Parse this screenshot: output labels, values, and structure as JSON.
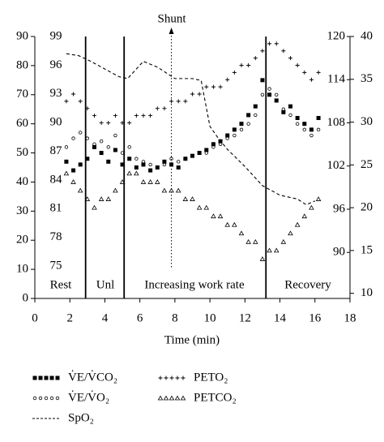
{
  "chart_data": {
    "type": "scatter",
    "xlabel": "Time (min)",
    "xlim": [
      0,
      18
    ],
    "xticks": [
      0,
      2,
      4,
      6,
      8,
      10,
      12,
      14,
      16,
      18
    ],
    "ylim": [
      0,
      90
    ],
    "yticks": [
      0,
      10,
      20,
      30,
      40,
      50,
      60,
      70,
      80,
      90
    ],
    "y2lim": [
      71.6,
      99
    ],
    "y2ticks": [
      75,
      78,
      81,
      84,
      87,
      90,
      93,
      96,
      99
    ],
    "y3lim": [
      83.6,
      120
    ],
    "y3ticks": [
      90,
      96,
      102,
      108,
      114,
      120
    ],
    "y4lim": [
      9.4,
      40
    ],
    "y4ticks": [
      10,
      15,
      20,
      25,
      30,
      35,
      40
    ],
    "phase_lines": [
      2.9,
      5.1,
      13.2
    ],
    "phases": [
      "Rest",
      "Unl",
      "Increasing work rate",
      "Recovery"
    ],
    "shunt": {
      "label": "Shunt",
      "x": 7.8
    },
    "x": [
      1.8,
      2.2,
      2.6,
      3.0,
      3.4,
      3.8,
      4.2,
      4.6,
      5.0,
      5.4,
      5.8,
      6.2,
      6.6,
      7.0,
      7.4,
      7.8,
      8.2,
      8.6,
      9.0,
      9.4,
      9.8,
      10.2,
      10.6,
      11.0,
      11.4,
      11.8,
      12.2,
      12.6,
      13.0,
      13.4,
      13.8,
      14.2,
      14.6,
      15.0,
      15.4,
      15.8,
      16.2
    ],
    "series": [
      {
        "name": "V̇E/V̇CO₂",
        "marker": "square",
        "axis": "y",
        "color": "#000000",
        "values": [
          47,
          44,
          46,
          48,
          52,
          50,
          47,
          51,
          46,
          48,
          45,
          46,
          44,
          45,
          47,
          46,
          45,
          48,
          49,
          50,
          51,
          53,
          54,
          56,
          58,
          60,
          63,
          66,
          75,
          70,
          68,
          64,
          66,
          62,
          60,
          58,
          62
        ]
      },
      {
        "name": "V̇E/V̇O₂",
        "marker": "circle",
        "axis": "y",
        "color": "#000000",
        "values": [
          52,
          55,
          57,
          55,
          53,
          54,
          52,
          56,
          50,
          52,
          48,
          47,
          46,
          45,
          46,
          48,
          47,
          48,
          49,
          50,
          50,
          52,
          53,
          55,
          56,
          58,
          60,
          63,
          70,
          72,
          70,
          65,
          63,
          60,
          58,
          56,
          58
        ]
      },
      {
        "name": "SpO₂",
        "marker": "dashed",
        "axis": "y2",
        "color": "#000000",
        "x": [
          1.8,
          2.5,
          3.2,
          4.0,
          4.8,
          5.3,
          6.2,
          7.0,
          8.0,
          9.0,
          9.5,
          10.0,
          10.5,
          11.0,
          12.0,
          13.0,
          14.0,
          15.0,
          15.5,
          16.0
        ],
        "values": [
          97.2,
          97,
          96.4,
          95.6,
          94.8,
          94.6,
          96.4,
          95.8,
          94.6,
          94.6,
          94.4,
          89.6,
          88.3,
          87.2,
          85.4,
          83.4,
          82.4,
          82,
          81.4,
          81.8
        ]
      },
      {
        "name": "PETO₂",
        "marker": "plus",
        "axis": "y3",
        "color": "#000000",
        "values": [
          111,
          112,
          111,
          110,
          109,
          108,
          108,
          109,
          108,
          108,
          109,
          109,
          109,
          110,
          110,
          111,
          111,
          111,
          112,
          112,
          113,
          113,
          113,
          114,
          115,
          116,
          116,
          117,
          118,
          119,
          119,
          118,
          117,
          116,
          115,
          114,
          115
        ]
      },
      {
        "name": "PETCO₂",
        "marker": "triangle",
        "axis": "y4",
        "color": "#000000",
        "values": [
          24,
          23,
          22,
          21,
          20,
          21,
          21,
          22,
          23,
          24,
          24,
          23,
          23,
          23,
          22,
          22,
          22,
          21,
          21,
          20,
          20,
          19,
          19,
          18,
          18,
          17,
          16,
          16,
          14,
          15,
          15,
          16,
          17,
          18,
          19,
          20,
          21
        ]
      }
    ]
  }
}
